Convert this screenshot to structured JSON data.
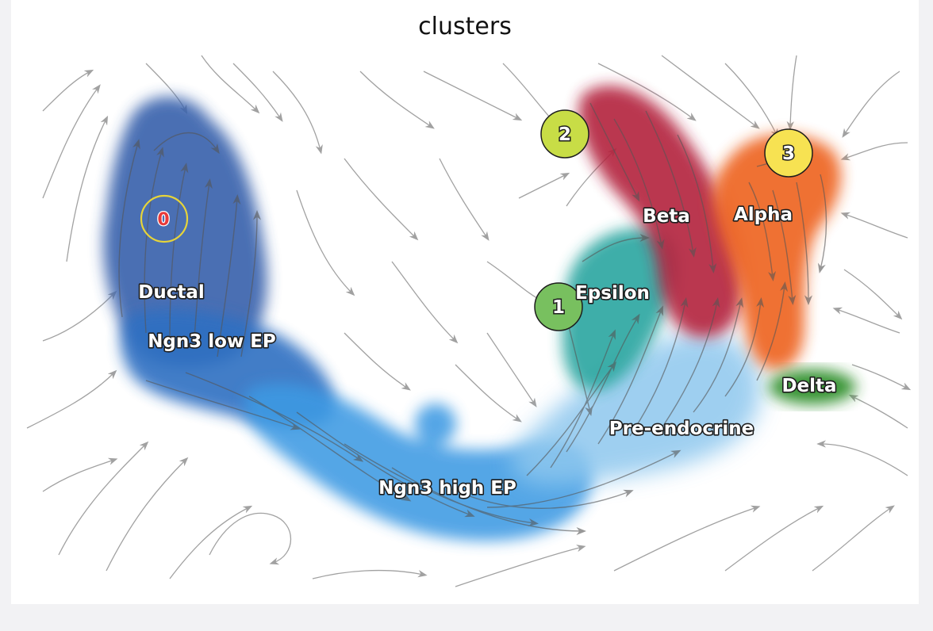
{
  "title": "clusters",
  "clusters": [
    {
      "name": "Ductal",
      "color": "#3b64ad"
    },
    {
      "name": "Ngn3 low EP",
      "color": "#2f6fc2"
    },
    {
      "name": "Ngn3 high EP",
      "color": "#3c9ae3"
    },
    {
      "name": "Pre-endocrine",
      "color": "#8ec7ee"
    },
    {
      "name": "Epsilon",
      "color": "#2aa6a0"
    },
    {
      "name": "Beta",
      "color": "#b3233d"
    },
    {
      "name": "Alpha",
      "color": "#ee6524"
    },
    {
      "name": "Delta",
      "color": "#2e8f2b"
    }
  ],
  "nodes": [
    {
      "label": "0",
      "fill": "none",
      "stroke": "#e6d43a",
      "text_color": "#e83a3a"
    },
    {
      "label": "1",
      "fill": "#78c05f",
      "stroke": "#1d1d1d",
      "text_color": "#ffffff"
    },
    {
      "label": "2",
      "fill": "#c8dd46",
      "stroke": "#1d1d1d",
      "text_color": "#ffffff"
    },
    {
      "label": "3",
      "fill": "#f7e252",
      "stroke": "#1d1d1d",
      "text_color": "#ffffff"
    }
  ],
  "streamline_color": "#555555"
}
